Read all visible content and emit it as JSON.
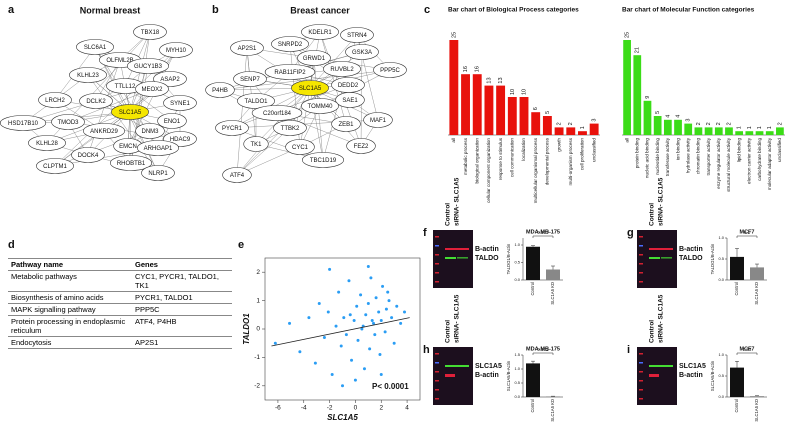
{
  "networks": [
    {
      "letter": "a",
      "title": "Normal breast",
      "center": "SLC1A5",
      "nodes": [
        "TBX18",
        "MYH10",
        "SLC6A1",
        "OLFML2B",
        "GUCY1B3",
        "ASAP2",
        "KLHL23",
        "TTLL12",
        "MEOX2",
        "LRCH2",
        "DCLK2",
        "SYNE1",
        "HSD17B10",
        "SLC1A5",
        "ENO1",
        "TMOD3",
        "ANKRD29",
        "DNM3",
        "HDAC9",
        "KLHL28",
        "EMCN",
        "ARHGAP1",
        "DOCK4",
        "RHOBTB1",
        "CLPTM1",
        "NLRP1"
      ]
    },
    {
      "letter": "b",
      "title": "Breast cancer",
      "center": "SLC1A5",
      "nodes": [
        "KDELR1",
        "STRN4",
        "AP2S1",
        "SNRPD2",
        "GSK3A",
        "GRWD1",
        "RUVBL2",
        "RAB11FIP2",
        "PPP5C",
        "SENP7",
        "DEDD2",
        "P4HB",
        "SLC1A5",
        "SAE1",
        "TALDO1",
        "TOMM40",
        "C20orf184",
        "PYCR1",
        "TTBK2",
        "ZEB1",
        "MAF1",
        "TK1",
        "CYC1",
        "FEZ2",
        "TBC1D19",
        "ATF4"
      ]
    }
  ],
  "go_charts": {
    "letter": "c",
    "charts": [
      {
        "type": "bar",
        "title": "Bar chart of Biological Process categories",
        "color": "#e8120c",
        "categories": [
          "all",
          "metabolic process",
          "biological organization",
          "cellular component organization",
          "response to stimulus",
          "cell communication",
          "localization",
          "multicellular organismal process",
          "developmental process",
          "growth",
          "multi-organism process",
          "cell proliferation",
          "unclassified"
        ],
        "values": [
          25,
          16,
          16,
          13,
          13,
          10,
          10,
          6,
          5,
          2,
          2,
          1,
          3
        ]
      },
      {
        "type": "bar",
        "title": "Bar chart of Molecular Function categories",
        "color": "#3bdc17",
        "categories": [
          "all",
          "protein binding",
          "nucleic acid binding",
          "nucleotide binding",
          "transferase activity",
          "ion binding",
          "hydrolase activity",
          "chromatin binding",
          "transporter activity",
          "enzyme regulator activity",
          "structural molecule activity",
          "lipid binding",
          "electron carrier activity",
          "carbohydrate binding",
          "molecular adaptor activity",
          "unclassified"
        ],
        "values": [
          25,
          21,
          9,
          5,
          4,
          4,
          3,
          2,
          2,
          2,
          2,
          1,
          1,
          1,
          1,
          2
        ]
      }
    ]
  },
  "table": {
    "letter": "d",
    "header": [
      "Pathway name",
      "Genes"
    ],
    "rows": [
      [
        "Metabolic pathways",
        "CYC1, PYCR1, TALDO1, TK1"
      ],
      [
        "Biosynthesis of amino acids",
        "PYCR1, TALDO1"
      ],
      [
        "MAPK signalling pathway",
        "PPP5C"
      ],
      [
        "Protein processing in endoplasmic reticulum",
        "ATF4, P4HB"
      ],
      [
        "Endocytosis",
        "AP2S1"
      ]
    ]
  },
  "scatter": {
    "letter": "e",
    "type": "scatter",
    "xlabel": "SLC1A5",
    "ylabel": "TALDO1",
    "annotation": "P< 0.0001",
    "color": "#2a9df4",
    "xlim": [
      -7,
      5
    ],
    "xticks": [
      -6,
      -4,
      -2,
      0,
      2,
      4
    ],
    "ylim": [
      -2.5,
      2.5
    ],
    "yticks": [
      -2,
      -1,
      0,
      1,
      2
    ],
    "x": [
      -6.2,
      -5.1,
      -4.3,
      -3.6,
      -3.1,
      -2.8,
      -2.4,
      -2.1,
      -1.8,
      -1.5,
      -1.3,
      -1.1,
      -0.9,
      -0.7,
      -0.5,
      -0.3,
      -0.1,
      0.1,
      0.2,
      0.4,
      0.5,
      0.7,
      0.8,
      1.0,
      1.1,
      1.2,
      1.4,
      1.5,
      1.6,
      1.8,
      1.9,
      2.0,
      2.1,
      2.3,
      2.4,
      2.6,
      2.8,
      3.0,
      3.2,
      3.5,
      3.8,
      -2.0,
      -1.0,
      0.0,
      1.0,
      2.0,
      0.6,
      1.3,
      -0.4,
      2.5
    ],
    "y": [
      -0.5,
      0.2,
      -0.8,
      0.4,
      -1.2,
      0.9,
      -0.3,
      0.6,
      -1.6,
      0.1,
      1.3,
      -0.6,
      0.4,
      -0.2,
      1.7,
      -1.1,
      0.3,
      0.8,
      -0.4,
      1.2,
      0.0,
      -1.4,
      0.5,
      0.9,
      -0.7,
      1.8,
      0.2,
      -0.2,
      1.1,
      0.6,
      -0.9,
      0.3,
      1.5,
      -0.1,
      0.7,
      1.0,
      0.4,
      -0.5,
      0.8,
      0.2,
      0.6,
      2.1,
      -2.0,
      -1.8,
      2.2,
      -1.6,
      0.1,
      0.3,
      0.5,
      1.3
    ],
    "fit_line": {
      "x": [
        -6.5,
        4.2
      ],
      "y": [
        -0.6,
        0.4
      ]
    }
  },
  "blots": [
    {
      "letter": "f",
      "lanes": [
        "Control",
        "siRNA- SLC1A5"
      ],
      "bands": [
        "B-actin",
        "TALDO"
      ],
      "chart": {
        "type": "bar",
        "title": "MDA-MB-175",
        "ylabel": "TALDO1/B-Actin",
        "p": "0.007",
        "categories": [
          "Control",
          "SLC1A5 KD"
        ],
        "values": [
          0.95,
          0.3
        ],
        "errors": [
          0.03,
          0.1
        ],
        "colors": [
          "#111111",
          "#888888"
        ],
        "ylim": [
          0,
          1.2
        ],
        "yticks": [
          {
            "value": 0,
            "label": "0.0"
          },
          {
            "value": 0.5,
            "label": "0.5"
          },
          {
            "value": 1,
            "label": "1.0"
          }
        ]
      }
    },
    {
      "letter": "g",
      "lanes": [
        "Control",
        "siRNA- SLC1A5"
      ],
      "bands": [
        "B-actin",
        "TALDO"
      ],
      "chart": {
        "type": "bar",
        "title": "MCF7",
        "ylabel": "TALDO1/B-Actin",
        "p": "0.1",
        "categories": [
          "Control",
          "SLC1A5 KD"
        ],
        "values": [
          0.55,
          0.3
        ],
        "errors": [
          0.2,
          0.08
        ],
        "colors": [
          "#111111",
          "#888888"
        ],
        "ylim": [
          0,
          1
        ],
        "yticks": [
          {
            "value": 0,
            "label": "0.0"
          },
          {
            "value": 0.5,
            "label": "0.5"
          },
          {
            "value": 1,
            "label": "1.0"
          }
        ]
      }
    },
    {
      "letter": "h",
      "lanes": [
        "Control",
        "siRNA- SLC1A5"
      ],
      "bands": [
        "SLC1A5",
        "B-actin"
      ],
      "chart": {
        "type": "bar",
        "title": "MDA-MB-175",
        "ylabel": "SLC1A5/B-Actin",
        "p": "0.002",
        "categories": [
          "Control",
          "SLC1A5 KD"
        ],
        "values": [
          1.2,
          0.02
        ],
        "errors": [
          0.08,
          0.01
        ],
        "colors": [
          "#111111",
          "#888888"
        ],
        "ylim": [
          0,
          1.5
        ],
        "yticks": [
          {
            "value": 0,
            "label": "0.0"
          },
          {
            "value": 0.5,
            "label": "0.5"
          },
          {
            "value": 1,
            "label": "1.0"
          },
          {
            "value": 1.5,
            "label": "1.5"
          }
        ]
      }
    },
    {
      "letter": "i",
      "lanes": [
        "Control",
        "siRNA- SLC1A5"
      ],
      "bands": [
        "SLC1A5",
        "B-actin"
      ],
      "chart": {
        "type": "bar",
        "title": "MCF7",
        "ylabel": "SLC1A5/B-Actin",
        "p": "0.03",
        "categories": [
          "Control",
          "SLC1A5 KD"
        ],
        "values": [
          0.7,
          0.02
        ],
        "errors": [
          0.15,
          0.01
        ],
        "colors": [
          "#111111",
          "#888888"
        ],
        "ylim": [
          0,
          1
        ],
        "yticks": [
          {
            "value": 0,
            "label": "0.0"
          },
          {
            "value": 0.5,
            "label": "0.5"
          },
          {
            "value": 1,
            "label": "1.0"
          }
        ]
      }
    }
  ]
}
